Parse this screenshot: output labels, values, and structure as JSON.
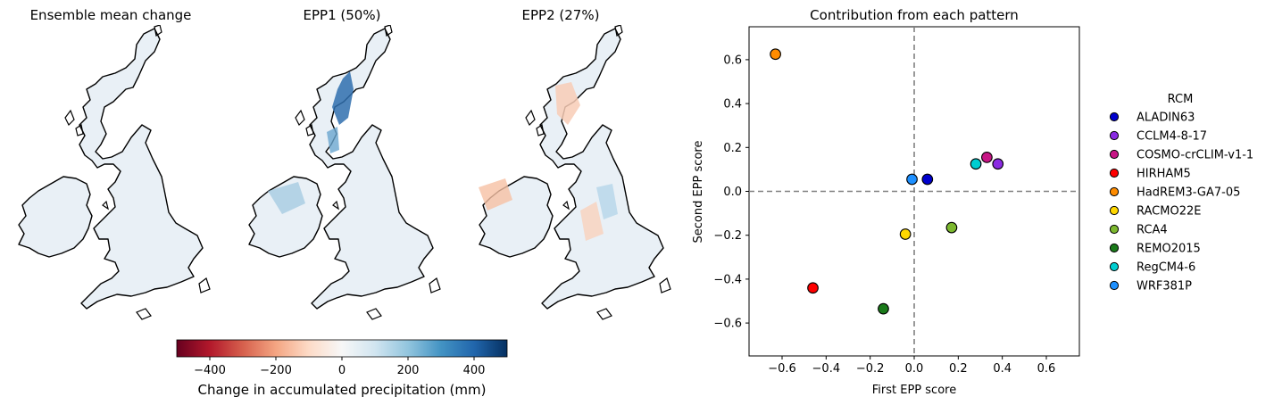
{
  "maps": {
    "panels": [
      {
        "title": "Ensemble mean change"
      },
      {
        "title": "EPP1 (50%)"
      },
      {
        "title": "EPP2 (27%)"
      }
    ],
    "colorbar": {
      "label": "Change in accumulated precipitation (mm)",
      "vmin": -500,
      "vmax": 500,
      "ticks": [
        "−400",
        "−200",
        "0",
        "200",
        "400"
      ],
      "tick_values": [
        -400,
        -200,
        0,
        200,
        400
      ],
      "colormap": "RdBu"
    }
  },
  "chart_data": {
    "type": "scatter",
    "title": "Contribution from each pattern",
    "xlabel": "First EPP score",
    "ylabel": "Second EPP score",
    "xlim": [
      -0.75,
      0.75
    ],
    "ylim": [
      -0.75,
      0.75
    ],
    "xticks": [
      -0.6,
      -0.4,
      -0.2,
      0.0,
      0.2,
      0.4,
      0.6
    ],
    "xtick_labels": [
      "−0.6",
      "−0.4",
      "−0.2",
      "0.0",
      "0.2",
      "0.4",
      "0.6"
    ],
    "yticks": [
      -0.6,
      -0.4,
      -0.2,
      0.0,
      0.2,
      0.4,
      0.6
    ],
    "ytick_labels": [
      "−0.6",
      "−0.4",
      "−0.2",
      "0.0",
      "0.2",
      "0.4",
      "0.6"
    ],
    "reference_lines": {
      "x": 0,
      "y": 0,
      "style": "dashed",
      "color": "#808080"
    },
    "legend": {
      "title": "RCM",
      "placement": "outside right"
    },
    "series": [
      {
        "name": "ALADIN63",
        "color": "#0000cd",
        "x": 0.06,
        "y": 0.055
      },
      {
        "name": "CCLM4-8-17",
        "color": "#8a2be2",
        "x": 0.38,
        "y": 0.125
      },
      {
        "name": "COSMO-crCLIM-v1-1",
        "color": "#c71585",
        "x": 0.33,
        "y": 0.155
      },
      {
        "name": "HIRHAM5",
        "color": "#ff0000",
        "x": -0.46,
        "y": -0.44
      },
      {
        "name": "HadREM3-GA7-05",
        "color": "#ff8c00",
        "x": -0.63,
        "y": 0.625
      },
      {
        "name": "RACMO22E",
        "color": "#ffd700",
        "x": -0.04,
        "y": -0.195
      },
      {
        "name": "RCA4",
        "color": "#7cb82f",
        "x": 0.17,
        "y": -0.165
      },
      {
        "name": "REMO2015",
        "color": "#1a7a1a",
        "x": -0.14,
        "y": -0.535
      },
      {
        "name": "RegCM4-6",
        "color": "#00ced1",
        "x": 0.28,
        "y": 0.125
      },
      {
        "name": "WRF381P",
        "color": "#1e90ff",
        "x": -0.01,
        "y": 0.055
      }
    ]
  }
}
